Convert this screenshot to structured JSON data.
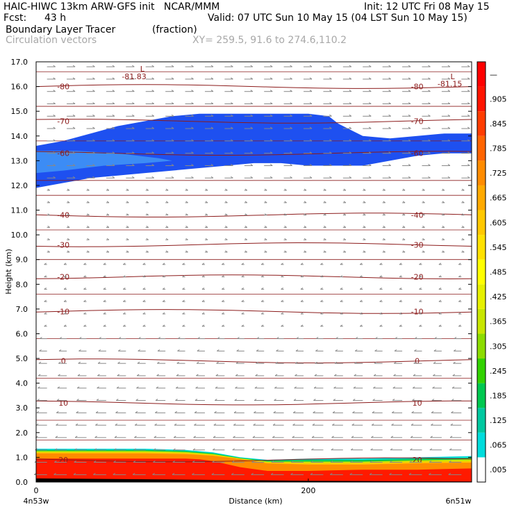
{
  "header": {
    "model_line": "HAIC-HIWC 13km ARW-GFS init   NCAR/MMM",
    "init_line": "Init: 12 UTC Fri 08 May 15",
    "fcst_label": "Fcst:",
    "fcst_value": "43 h",
    "valid_line": "Valid: 07 UTC Sun 10 May 15 (04 LST Sun 10 May 15)",
    "field_name": "Boundary Layer Tracer",
    "field_units": "(fraction)",
    "vector_label": "Circulation vectors",
    "xsec_line": "XY= 259.5, 91.6 to 274.6,110.2"
  },
  "chart_data": {
    "type": "heatmap",
    "xlabel": "Distance (km)",
    "ylabel": "Height (km)",
    "xlim": [
      0,
      320
    ],
    "ylim": [
      0,
      17
    ],
    "x_ticks": [
      0,
      200
    ],
    "y_ticks": [
      "0.0",
      "1.0",
      "2.0",
      "3.0",
      "4.0",
      "5.0",
      "6.0",
      "7.0",
      "8.0",
      "9.0",
      "10.0",
      "11.0",
      "12.0",
      "13.0",
      "14.0",
      "15.0",
      "16.0",
      "17.0"
    ],
    "x_endpoint_labels": [
      "4n53w",
      "6n51w"
    ],
    "colorbar_labels": [
      ".005",
      ".065",
      ".125",
      ".185",
      ".245",
      ".305",
      ".365",
      ".425",
      ".485",
      ".545",
      ".605",
      ".665",
      ".725",
      ".785",
      ".845",
      ".905",
      "—"
    ],
    "colorbar_colors": [
      "#ffffff",
      "#00dcdc",
      "#00c8a0",
      "#00c850",
      "#32d200",
      "#8cdc00",
      "#c8e600",
      "#e6f000",
      "#ffff00",
      "#ffe100",
      "#ffc800",
      "#ffaa00",
      "#ff8c00",
      "#ff6400",
      "#ff3c00",
      "#ff1400",
      "#ff0000"
    ],
    "tracer_high_level": {
      "upper": [
        [
          0,
          13.6
        ],
        [
          20,
          13.8
        ],
        [
          40,
          14.1
        ],
        [
          60,
          14.4
        ],
        [
          80,
          14.6
        ],
        [
          100,
          14.8
        ],
        [
          120,
          14.9
        ],
        [
          140,
          14.9
        ],
        [
          160,
          14.9
        ],
        [
          180,
          14.9
        ],
        [
          200,
          14.9
        ],
        [
          215,
          14.8
        ],
        [
          222,
          14.5
        ],
        [
          240,
          14.0
        ],
        [
          260,
          13.9
        ],
        [
          280,
          14.0
        ],
        [
          300,
          14.1
        ],
        [
          320,
          14.1
        ]
      ],
      "lower": [
        [
          320,
          13.3
        ],
        [
          300,
          13.3
        ],
        [
          280,
          13.2
        ],
        [
          260,
          13.0
        ],
        [
          240,
          12.8
        ],
        [
          220,
          12.8
        ],
        [
          200,
          12.8
        ],
        [
          180,
          12.9
        ],
        [
          160,
          12.9
        ],
        [
          140,
          12.8
        ],
        [
          120,
          12.7
        ],
        [
          100,
          12.6
        ],
        [
          80,
          12.5
        ],
        [
          60,
          12.4
        ],
        [
          40,
          12.3
        ],
        [
          20,
          12.1
        ],
        [
          0,
          11.9
        ]
      ],
      "core_upper": [
        [
          0,
          13.4
        ],
        [
          30,
          13.4
        ],
        [
          60,
          13.3
        ],
        [
          90,
          13.1
        ],
        [
          100,
          13.0
        ]
      ],
      "core_lower": [
        [
          100,
          13.0
        ],
        [
          80,
          12.9
        ],
        [
          50,
          12.8
        ],
        [
          20,
          12.6
        ],
        [
          0,
          12.5
        ]
      ]
    },
    "tracer_boundary_layer": {
      "top_cyan": [
        [
          0,
          1.35
        ],
        [
          40,
          1.35
        ],
        [
          80,
          1.35
        ],
        [
          110,
          1.3
        ],
        [
          130,
          1.2
        ],
        [
          150,
          1.0
        ],
        [
          170,
          0.9
        ],
        [
          200,
          0.95
        ],
        [
          240,
          0.95
        ],
        [
          280,
          1.0
        ],
        [
          320,
          1.05
        ]
      ],
      "top_red": [
        [
          0,
          0.95
        ],
        [
          40,
          0.95
        ],
        [
          80,
          0.95
        ],
        [
          110,
          0.95
        ],
        [
          120,
          0.92
        ],
        [
          130,
          0.85
        ],
        [
          150,
          0.6
        ],
        [
          170,
          0.45
        ],
        [
          200,
          0.45
        ],
        [
          240,
          0.5
        ],
        [
          280,
          0.5
        ],
        [
          320,
          0.55
        ]
      ]
    },
    "temperature_contours": [
      {
        "value": -80,
        "height": 16.0,
        "label": "-80"
      },
      {
        "value": -70,
        "height": 14.6,
        "label": "-70"
      },
      {
        "value": -60,
        "height": 13.3,
        "label": "-60"
      },
      {
        "value": -40,
        "height": 10.8,
        "label": "-40"
      },
      {
        "value": -30,
        "height": 9.6,
        "label": "-30"
      },
      {
        "value": -20,
        "height": 8.3,
        "label": "-20"
      },
      {
        "value": -10,
        "height": 6.9,
        "label": "-10"
      },
      {
        "value": 0,
        "height": 4.9,
        "label": "0"
      },
      {
        "value": 10,
        "height": 3.2,
        "label": "10"
      },
      {
        "value": 20,
        "height": 0.9,
        "label": "20"
      }
    ],
    "annotations": [
      {
        "text": "L",
        "x": 78,
        "y": 16.6
      },
      {
        "text": "-81.83",
        "x": 72,
        "y": 16.3
      },
      {
        "text": "L",
        "x": 306,
        "y": 16.3
      },
      {
        "text": "-81.15",
        "x": 304,
        "y": 16.0
      }
    ],
    "vectors_note": "circulation vectors"
  }
}
